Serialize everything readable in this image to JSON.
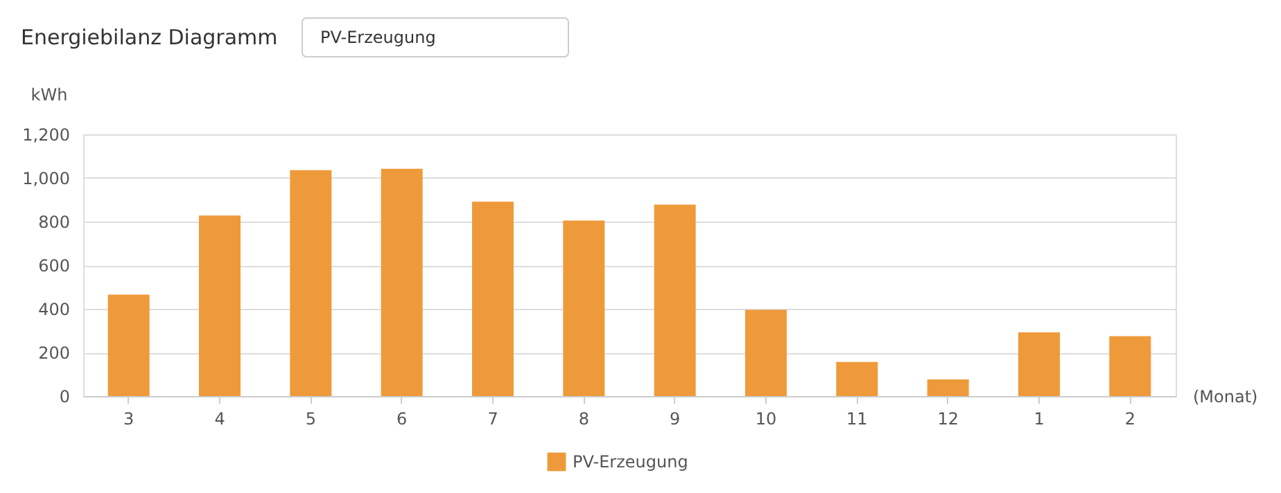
{
  "chart_data": {
    "type": "bar",
    "title": "Energiebilanz Diagramm",
    "annotations": [
      "PV-Erzeugung"
    ],
    "xlabel": "(Monat)",
    "ylabel": "kWh",
    "categories": [
      "3",
      "4",
      "5",
      "6",
      "7",
      "8",
      "9",
      "10",
      "11",
      "12",
      "1",
      "2"
    ],
    "series": [
      {
        "name": "PV-Erzeugung",
        "color": "#ef9a3a",
        "values": [
          465,
          828,
          1036,
          1042,
          891,
          805,
          878,
          395,
          156,
          76,
          292,
          275
        ]
      }
    ],
    "ylim": [
      0,
      1200
    ],
    "yticks": [
      0,
      200,
      400,
      600,
      800,
      {
        "value": 1000,
        "label": "1,000"
      },
      {
        "value": 1200,
        "label": "1,200"
      }
    ],
    "grid": "y",
    "legend": "bottom"
  }
}
